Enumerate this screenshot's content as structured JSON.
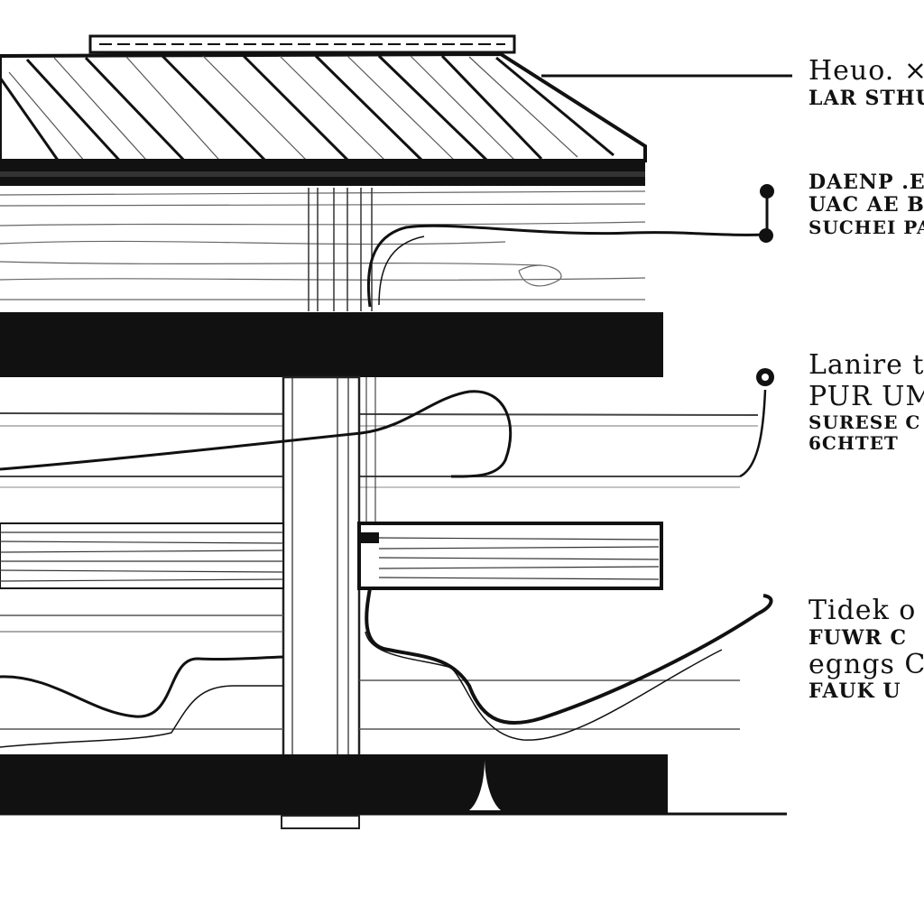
{
  "colors": {
    "ink": "#111111",
    "paper": "#ffffff",
    "grain": "#555555"
  },
  "callouts": [
    {
      "id": "roof",
      "lines": [
        "Heuo. ×",
        "LAR STHUU"
      ]
    },
    {
      "id": "upper",
      "lines": [
        "DAENP .EAB",
        "UAC AE B",
        "SUCHEI PA"
      ]
    },
    {
      "id": "middle",
      "lines": [
        "Lanire t",
        "PUR UM",
        "SURESE C",
        "6CHTET"
      ]
    },
    {
      "id": "lower",
      "lines": [
        "Tidek  o",
        "FUWR  C",
        "egngs  C",
        "FAUK  U"
      ]
    }
  ]
}
